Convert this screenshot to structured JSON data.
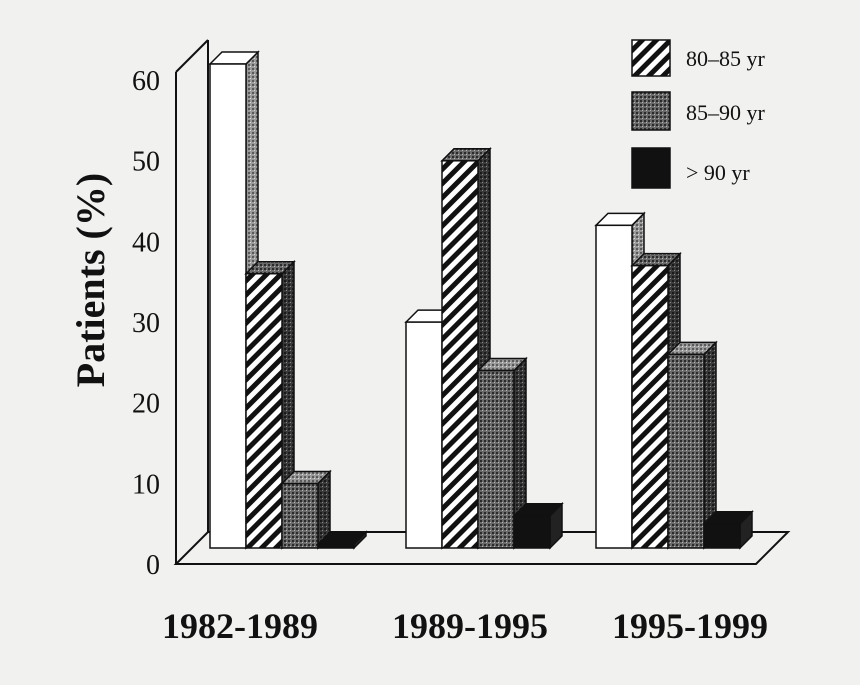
{
  "chart_data": {
    "type": "bar",
    "categories": [
      "1982-1989",
      "1989-1995",
      "1995-1999"
    ],
    "series": [
      {
        "values": [
          60,
          28,
          40
        ],
        "pattern": "white"
      },
      {
        "name": "80–85 yr",
        "values": [
          34,
          48,
          35
        ],
        "pattern": "hatch"
      },
      {
        "name": "85–90 yr",
        "values": [
          8,
          22,
          24
        ],
        "pattern": "dots"
      },
      {
        "name": "> 90 yr",
        "values": [
          0,
          4,
          3
        ],
        "pattern": "black"
      }
    ],
    "yticks": [
      "0",
      "10",
      "20",
      "30",
      "40",
      "50",
      "60"
    ],
    "ylabel": "Patients (%)",
    "xlabel": "",
    "ylim": [
      0,
      60
    ],
    "legend_position": "top-right",
    "three_d": true
  }
}
